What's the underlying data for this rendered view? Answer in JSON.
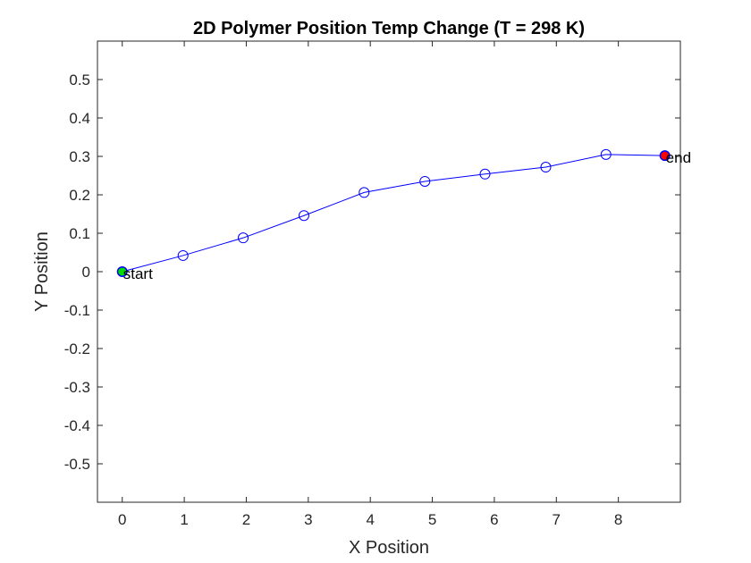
{
  "chart_data": {
    "type": "line",
    "title": "2D Polymer Position Temp Change (T = 298 K)",
    "xlabel": "X Position",
    "ylabel": "Y Position",
    "xlim": [
      -0.4,
      9
    ],
    "ylim": [
      -0.6,
      0.6
    ],
    "xticks": [
      "0",
      "1",
      "2",
      "3",
      "4",
      "5",
      "6",
      "7",
      "8"
    ],
    "yticks": [
      "-0.5",
      "-0.4",
      "-0.3",
      "-0.2",
      "-0.1",
      "0",
      "0.1",
      "0.2",
      "0.3",
      "0.4",
      "0.5"
    ],
    "grid": false,
    "series": [
      {
        "x": [
          0,
          0.98,
          1.95,
          2.93,
          3.9,
          4.88,
          5.85,
          6.83,
          7.8,
          8.75
        ],
        "y": [
          0,
          0.042,
          0.088,
          0.146,
          0.206,
          0.235,
          0.254,
          0.272,
          0.305,
          0.302
        ],
        "color": "#0000ff",
        "marker": "open-circle"
      }
    ],
    "markers": [
      {
        "label": "start",
        "x": 0,
        "y": 0,
        "color": "#00dd00"
      },
      {
        "label": "end",
        "x": 8.75,
        "y": 0.302,
        "color": "#ff0000"
      }
    ]
  }
}
